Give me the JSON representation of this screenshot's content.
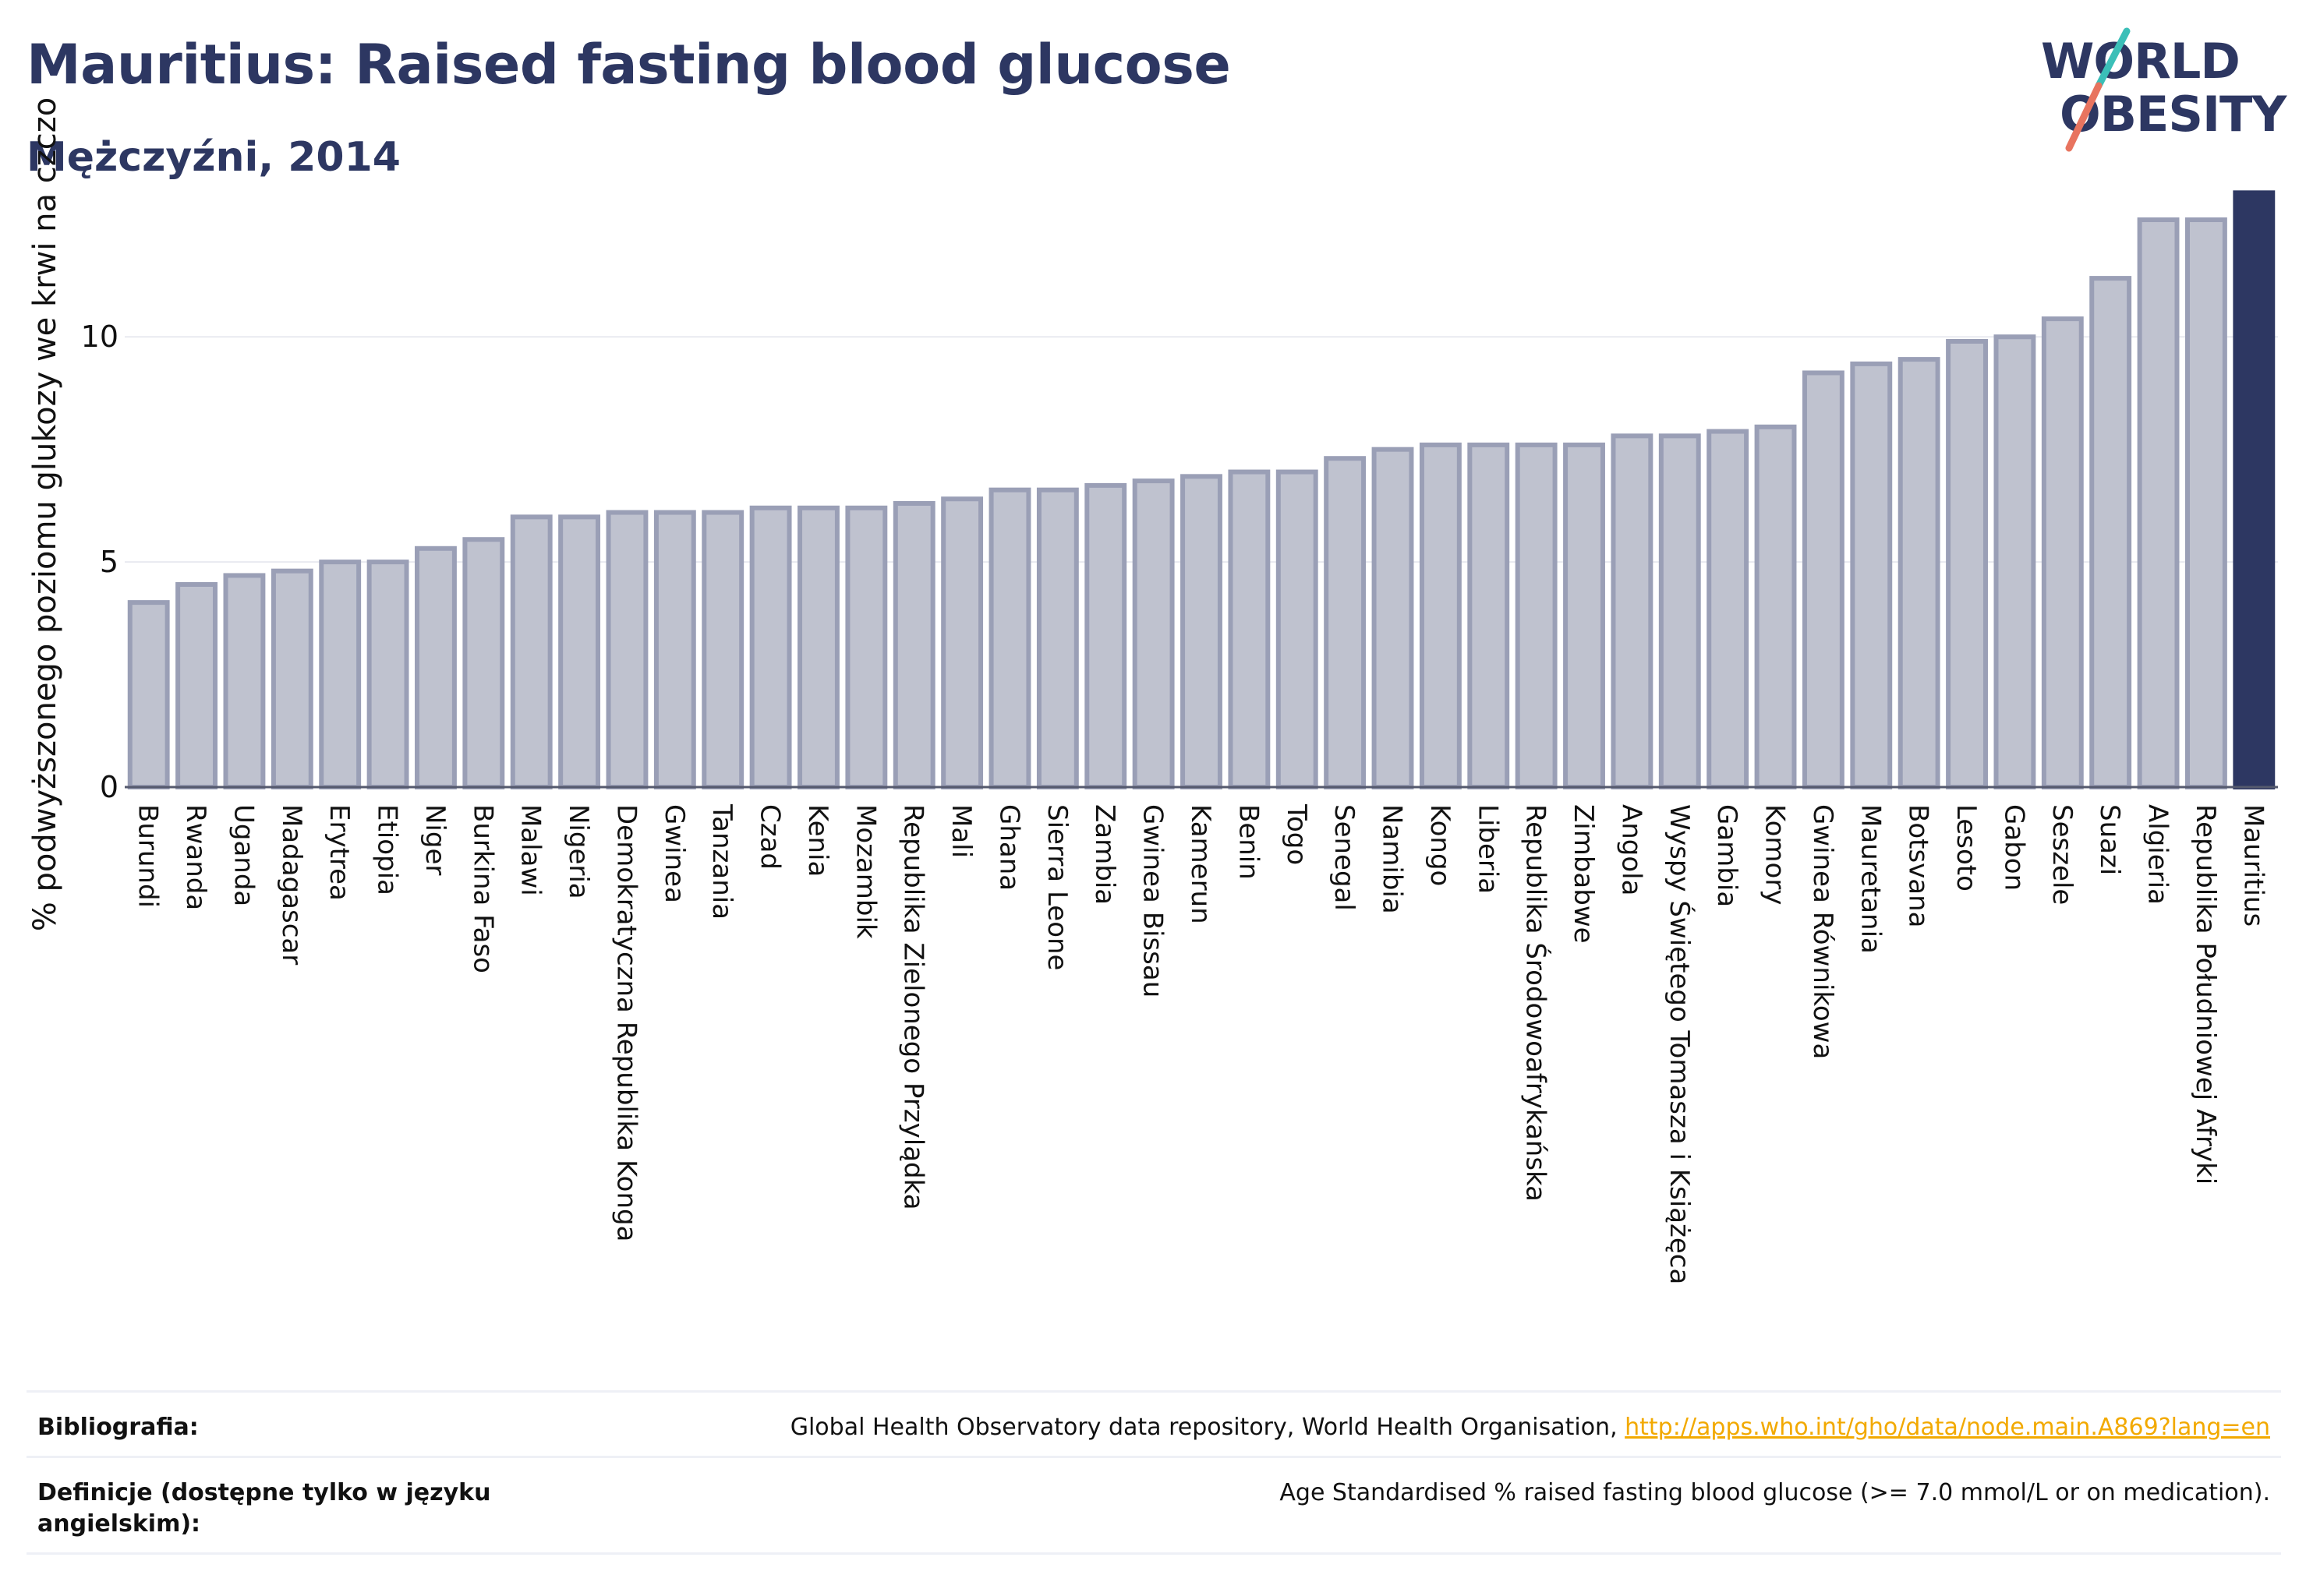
{
  "header": {
    "title": "Mauritius: Raised fasting blood glucose",
    "subtitle": "Mężczyźni, 2014"
  },
  "logo": {
    "line1": "WORLD",
    "line2": "OBESITY",
    "colors": {
      "text": "#2d3762",
      "slash_teal": "#3bbfb8",
      "slash_coral": "#e8745f"
    }
  },
  "colors": {
    "bar_fill": "#bfc2cf",
    "bar_stroke": "#9a9fb6",
    "highlight": "#2d3762",
    "grid": "#e8eaf0",
    "axis_text": "#111111"
  },
  "chart_data": {
    "type": "bar",
    "ylabel": "% podwyższonego poziomu glukozy we krwi na czczo",
    "xlabel": "",
    "ylim": [
      0,
      13.5
    ],
    "yticks": [
      0,
      5,
      10
    ],
    "grid": true,
    "highlight_category": "Mauritius",
    "categories": [
      "Burundi",
      "Rwanda",
      "Uganda",
      "Madagascar",
      "Erytrea",
      "Etiopia",
      "Niger",
      "Burkina Faso",
      "Malawi",
      "Nigeria",
      "Demokratyczna Republika Konga",
      "Gwinea",
      "Tanzania",
      "Czad",
      "Kenia",
      "Mozambik",
      "Republika Zielonego Przylądka",
      "Mali",
      "Ghana",
      "Sierra Leone",
      "Zambia",
      "Gwinea Bissau",
      "Kamerun",
      "Benin",
      "Togo",
      "Senegal",
      "Namibia",
      "Kongo",
      "Liberia",
      "Republika Środowoafrykańska",
      "Zimbabwe",
      "Angola",
      "Wyspy Świętego Tomasza i Książęca",
      "Gambia",
      "Komory",
      "Gwinea Równikowa",
      "Mauretania",
      "Botsvana",
      "Lesoto",
      "Gabon",
      "Seszele",
      "Suazi",
      "Algieria",
      "Republika Południowej Afryki",
      "Mauritius"
    ],
    "values": [
      4.1,
      4.5,
      4.7,
      4.8,
      5.0,
      5.0,
      5.3,
      5.5,
      6.0,
      6.0,
      6.1,
      6.1,
      6.1,
      6.2,
      6.2,
      6.2,
      6.3,
      6.4,
      6.6,
      6.6,
      6.7,
      6.8,
      6.9,
      7.0,
      7.0,
      7.3,
      7.5,
      7.6,
      7.6,
      7.6,
      7.6,
      7.8,
      7.8,
      7.9,
      8.0,
      9.2,
      9.4,
      9.5,
      9.9,
      10.0,
      10.4,
      11.3,
      12.6,
      12.6,
      13.2
    ]
  },
  "footer": {
    "bibliography_label": "Bibliografia:",
    "bibliography_text": "Global Health Observatory data repository, World Health Organisation, ",
    "bibliography_link": "http://apps.who.int/gho/data/node.main.A869?lang=en",
    "definitions_label": "Definicje (dostępne tylko w języku angielskim):",
    "definitions_text": "Age Standardised % raised fasting blood glucose (>= 7.0 mmol/L or on medication)."
  }
}
